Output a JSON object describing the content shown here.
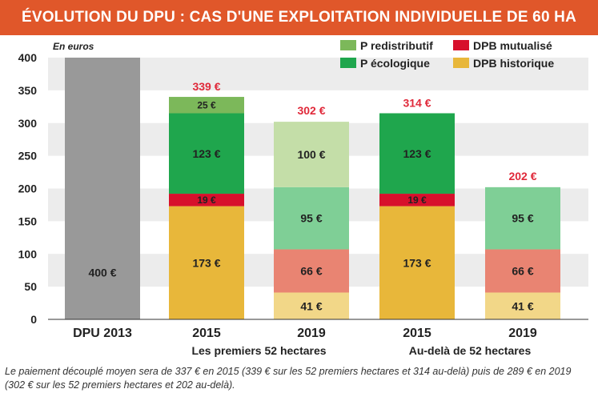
{
  "title": "ÉVOLUTION DU DPU : CAS D'UNE EXPLOITATION INDIVIDUELLE DE 60 HA",
  "footnote": "Le paiement découplé moyen sera de 337 € en 2015 (339 € sur les 52 premiers hectares et 314 au-delà) puis de 289 € en 2019 (302 € sur les 52 premiers hectares et 202 au-delà).",
  "chart_data": {
    "type": "bar",
    "stacked": true,
    "ylabel": "En euros",
    "ylim": [
      0,
      400
    ],
    "yticks": [
      "0",
      "50",
      "100",
      "150",
      "200",
      "250",
      "300",
      "350",
      "400"
    ],
    "grid": "horizontal bands",
    "legend_position": "top-right",
    "categories": [
      "DPU 2013",
      "2015",
      "2019",
      "2015",
      "2019"
    ],
    "groups": [
      {
        "label": "Les premiers 52 hectares",
        "categories": [
          1,
          2
        ]
      },
      {
        "label": "Au-delà de 52 hectares",
        "categories": [
          3,
          4
        ]
      }
    ],
    "totals": [
      {
        "category": 1,
        "label": "339 €",
        "value": 339
      },
      {
        "category": 2,
        "label": "302 €",
        "value": 302
      },
      {
        "category": 3,
        "label": "314 €",
        "value": 314
      },
      {
        "category": 4,
        "label": "202 €",
        "value": 202
      }
    ],
    "bars": [
      {
        "category": "DPU 2013",
        "segments": [
          {
            "value": 400,
            "label": "400 €",
            "color": "#999999"
          }
        ]
      },
      {
        "category": "2015",
        "segments": [
          {
            "series": "DPB historique",
            "value": 173,
            "label": "173 €",
            "color": "#e8b73a"
          },
          {
            "series": "DPB mutualisé",
            "value": 19,
            "label": "19 €",
            "color": "#d7102c"
          },
          {
            "series": "P écologique",
            "value": 123,
            "label": "123 €",
            "color": "#1fa64d"
          },
          {
            "series": "P redistributif",
            "value": 25,
            "label": "25 €",
            "color": "#7cb85a"
          }
        ]
      },
      {
        "category": "2019",
        "segments": [
          {
            "series": "DPB historique",
            "value": 41,
            "label": "41 €",
            "color": "#f2d788"
          },
          {
            "series": "DPB mutualisé",
            "value": 66,
            "label": "66 €",
            "color": "#e98472"
          },
          {
            "series": "P écologique",
            "value": 95,
            "label": "95 €",
            "color": "#7fcf96"
          },
          {
            "series": "P redistributif",
            "value": 100,
            "label": "100 €",
            "color": "#c4dea8"
          }
        ]
      },
      {
        "category": "2015",
        "segments": [
          {
            "series": "DPB historique",
            "value": 173,
            "label": "173 €",
            "color": "#e8b73a"
          },
          {
            "series": "DPB mutualisé",
            "value": 19,
            "label": "19 €",
            "color": "#d7102c"
          },
          {
            "series": "P écologique",
            "value": 123,
            "label": "123 €",
            "color": "#1fa64d"
          }
        ]
      },
      {
        "category": "2019",
        "segments": [
          {
            "series": "DPB historique",
            "value": 41,
            "label": "41 €",
            "color": "#f2d788"
          },
          {
            "series": "DPB mutualisé",
            "value": 66,
            "label": "66 €",
            "color": "#e98472"
          },
          {
            "series": "P écologique",
            "value": 95,
            "label": "95 €",
            "color": "#7fcf96"
          }
        ]
      }
    ],
    "legend": [
      {
        "label": "P redistributif",
        "color": "#7cb85a"
      },
      {
        "label": "DPB mutualisé",
        "color": "#d7102c"
      },
      {
        "label": "P écologique",
        "color": "#1fa64d"
      },
      {
        "label": "DPB historique",
        "color": "#e8b73a"
      }
    ],
    "colors": {
      "title_bar": "#e0572a",
      "total_label": "#e0293a",
      "band": "#ececec"
    }
  }
}
